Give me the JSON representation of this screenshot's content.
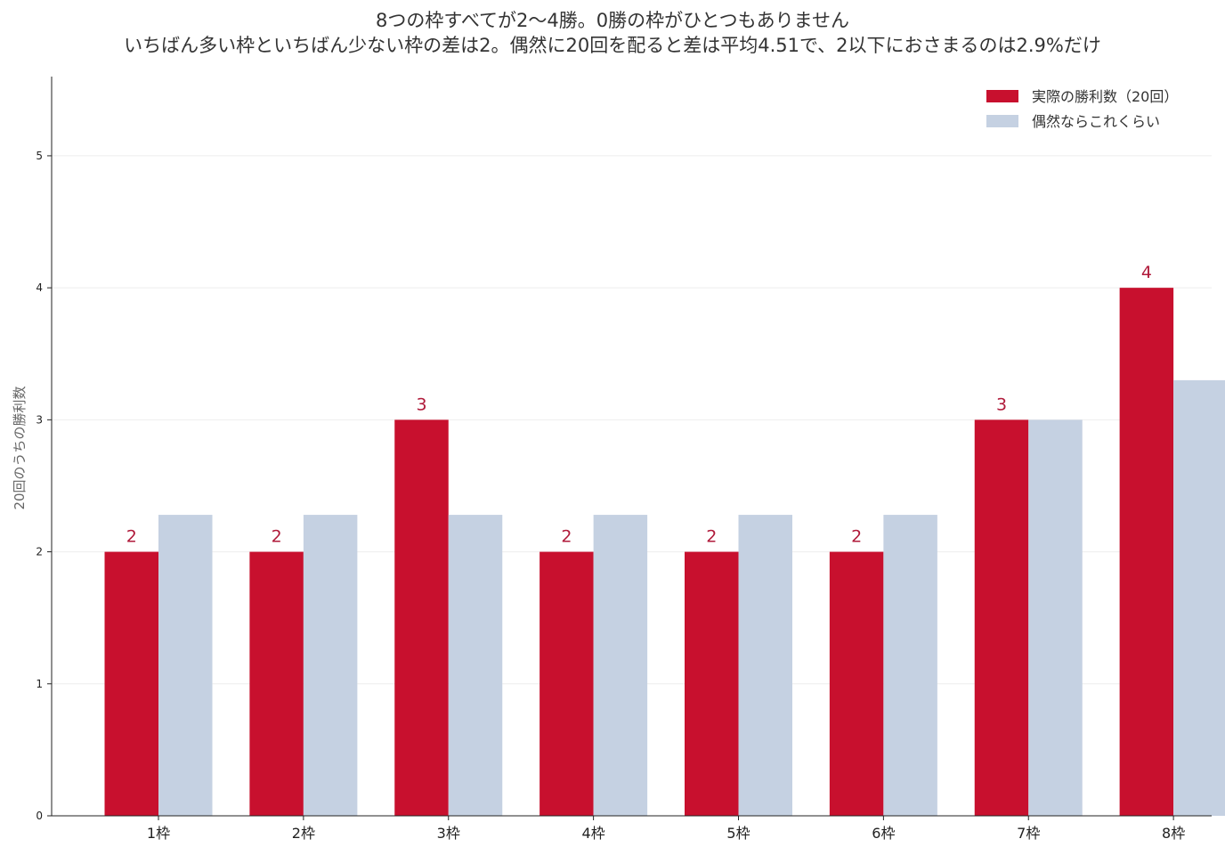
{
  "colors": {
    "actual": "#c8102e",
    "expected": "#c5d1e2",
    "axis": "#222222",
    "tick_text": "#222222",
    "ylabel_text": "#666666",
    "grid": "#eeeeee",
    "value_label": "#b01a3a"
  },
  "chart_data": {
    "type": "bar",
    "title": [
      "8つの枠すべてが2〜4勝。0勝の枠がひとつもありません",
      "いちばん多い枠といちばん少ない枠の差は2。偶然に20回を配ると差は平均4.51で、2以下におさまるのは2.9%だけ"
    ],
    "xlabel": "",
    "ylabel": "20回のうちの勝利数",
    "categories": [
      "1枠",
      "2枠",
      "3枠",
      "4枠",
      "5枠",
      "6枠",
      "7枠",
      "8枠"
    ],
    "series": [
      {
        "name": "実際の勝利数（20回）",
        "values": [
          2,
          2,
          3,
          2,
          2,
          2,
          3,
          4
        ],
        "value_labels": [
          "2",
          "2",
          "3",
          "2",
          "2",
          "2",
          "3",
          "4"
        ]
      },
      {
        "name": "偶然ならこれくらい",
        "values": [
          2.28,
          2.28,
          2.28,
          2.28,
          2.28,
          2.28,
          3.0,
          3.3
        ]
      }
    ],
    "ylim": [
      0,
      5.6
    ],
    "yticks": [
      "0",
      "1",
      "2",
      "3",
      "4",
      "5"
    ],
    "grid": true,
    "legend_position": "top-right"
  }
}
